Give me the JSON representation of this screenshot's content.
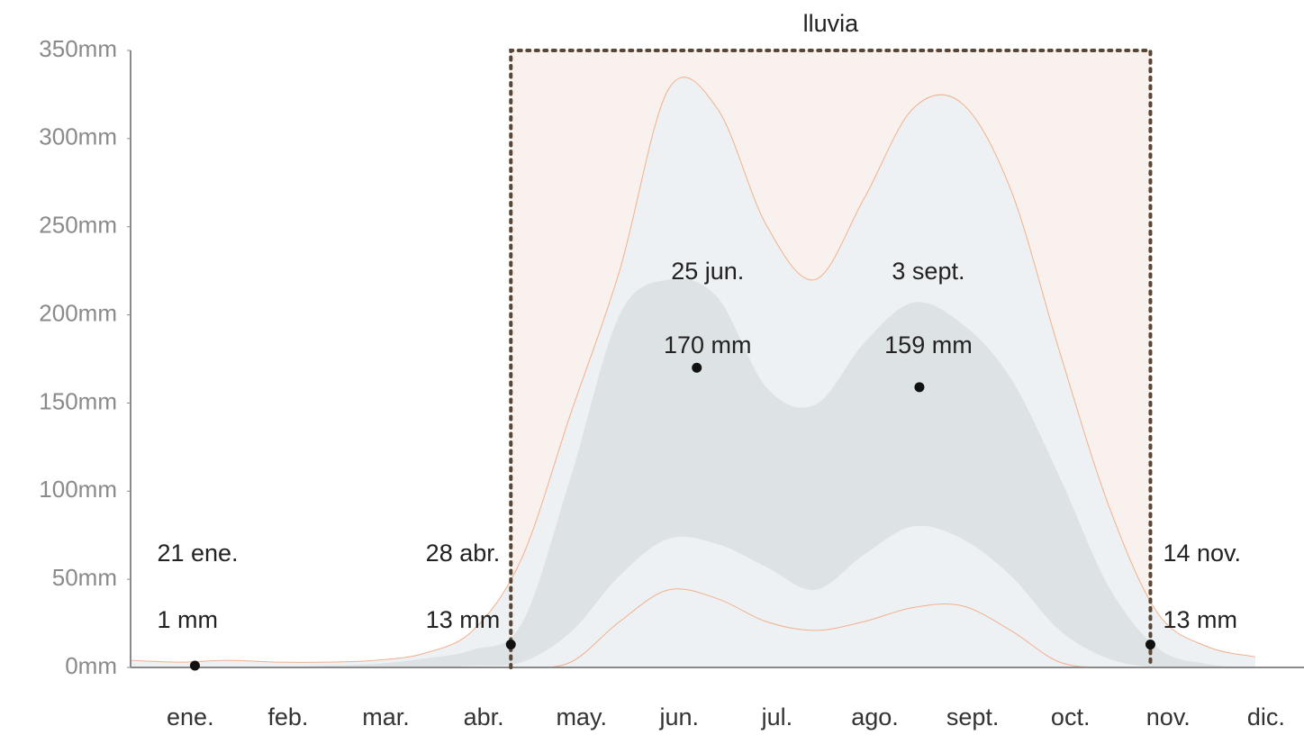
{
  "chart_data": {
    "type": "band",
    "title": "lluvia",
    "categories": [
      null,
      "ene.",
      null,
      "feb.",
      null,
      "mar.",
      null,
      "abr.",
      null,
      "may.",
      null,
      "jun.",
      null,
      "jul.",
      null,
      "ago.",
      null,
      "sept.",
      null,
      "oct.",
      null,
      "nov.",
      null,
      "dic."
    ],
    "series": [
      {
        "color": "#edf1f3",
        "values": [
          4,
          3,
          4,
          3,
          3,
          4,
          8,
          21,
          62,
          144,
          225,
          328,
          317,
          251,
          220,
          266,
          317,
          320,
          271,
          179,
          92,
          31,
          12,
          6
        ]
      },
      {
        "color": "#dde3e5",
        "values": [
          0,
          0,
          0,
          0,
          1,
          2,
          5,
          10,
          25,
          108,
          200,
          220,
          210,
          159,
          149,
          184,
          207,
          195,
          164,
          108,
          46,
          11,
          2,
          0
        ]
      },
      {
        "color": "#edf1f3",
        "values": [
          0,
          0,
          0,
          0,
          0,
          0,
          0,
          1,
          3,
          20,
          52,
          73,
          70,
          57,
          44,
          64,
          80,
          73,
          52,
          21,
          5,
          0,
          0,
          0
        ]
      },
      {
        "color": "#f2b08e",
        "values": [
          0,
          0,
          0,
          0,
          0,
          0,
          0,
          0,
          0,
          3,
          26,
          44,
          39,
          26,
          21,
          26,
          34,
          35,
          21,
          3,
          0,
          0,
          0,
          0
        ]
      }
    ],
    "season_color": "#f8f1ed",
    "annotations": [
      {
        "label": "21 ene.",
        "value": 1,
        "value_label": "1 mm"
      },
      {
        "label": "28 abr.",
        "value": 13,
        "value_label": "13 mm"
      },
      {
        "label": "14 nov.",
        "value": 13,
        "value_label": "13 mm"
      },
      {
        "label": "25 jun.",
        "value": 170,
        "value_label": "170 mm"
      },
      {
        "label": "3 sept.",
        "value": 159,
        "value_label": "159 mm"
      }
    ],
    "ylim": [
      0,
      350
    ],
    "yticks": [
      {
        "value": 0,
        "label": "0mm"
      },
      {
        "value": 50,
        "label": "50mm"
      },
      {
        "value": 100,
        "label": "100mm"
      },
      {
        "value": 150,
        "label": "150mm"
      },
      {
        "value": 200,
        "label": "200mm"
      },
      {
        "value": 250,
        "label": "250mm"
      },
      {
        "value": 300,
        "label": "300mm"
      },
      {
        "value": 350,
        "label": "350mm"
      }
    ]
  }
}
